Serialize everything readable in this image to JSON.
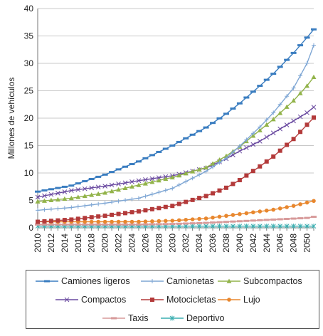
{
  "chart_data": {
    "type": "line",
    "title": "",
    "xlabel": "",
    "ylabel": "Millones de vehículos",
    "xlim": [
      2010,
      2051
    ],
    "ylim": [
      0,
      40
    ],
    "yticks": [
      "0",
      "5",
      "10",
      "15",
      "20",
      "25",
      "30",
      "35",
      "40"
    ],
    "xticks": [
      "2010",
      "2012",
      "2014",
      "2016",
      "2018",
      "2020",
      "2022",
      "2024",
      "2026",
      "2028",
      "2030",
      "2032",
      "2034",
      "2036",
      "2038",
      "2040",
      "2042",
      "2044",
      "2046",
      "2048",
      "2050"
    ],
    "grid": "horizontal",
    "legend_position": "bottom",
    "x_start": 2010,
    "x_end": 2051,
    "series": [
      {
        "name": "Camiones ligeros",
        "color": "#3a7dc0",
        "marker": "dash",
        "anchors": [
          [
            2010,
            6.6
          ],
          [
            2015,
            7.7
          ],
          [
            2020,
            9.7
          ],
          [
            2025,
            12.1
          ],
          [
            2030,
            15.0
          ],
          [
            2035,
            18.3
          ],
          [
            2038,
            20.8
          ],
          [
            2040,
            22.7
          ],
          [
            2043,
            25.9
          ],
          [
            2045,
            28.1
          ],
          [
            2048,
            31.9
          ],
          [
            2050,
            34.7
          ],
          [
            2051,
            36.2
          ]
        ]
      },
      {
        "name": "Camionetas",
        "color": "#7ea6d4",
        "marker": "plus",
        "anchors": [
          [
            2010,
            3.2
          ],
          [
            2015,
            3.7
          ],
          [
            2020,
            4.5
          ],
          [
            2025,
            5.4
          ],
          [
            2030,
            7.2
          ],
          [
            2035,
            10.3
          ],
          [
            2038,
            12.7
          ],
          [
            2040,
            14.9
          ],
          [
            2043,
            18.4
          ],
          [
            2045,
            21.0
          ],
          [
            2048,
            25.5
          ],
          [
            2050,
            30.0
          ],
          [
            2051,
            33.3
          ]
        ]
      },
      {
        "name": "Subcompactos",
        "color": "#92b34a",
        "marker": "triangle",
        "anchors": [
          [
            2010,
            4.8
          ],
          [
            2015,
            5.4
          ],
          [
            2020,
            6.4
          ],
          [
            2025,
            7.8
          ],
          [
            2030,
            9.2
          ],
          [
            2035,
            11.0
          ],
          [
            2038,
            13.1
          ],
          [
            2040,
            14.8
          ],
          [
            2043,
            17.8
          ],
          [
            2045,
            19.8
          ],
          [
            2048,
            23.2
          ],
          [
            2050,
            25.9
          ],
          [
            2051,
            27.5
          ]
        ]
      },
      {
        "name": "Compactos",
        "color": "#6a4aa0",
        "marker": "x",
        "anchors": [
          [
            2010,
            5.6
          ],
          [
            2015,
            6.8
          ],
          [
            2020,
            7.6
          ],
          [
            2025,
            8.6
          ],
          [
            2030,
            9.5
          ],
          [
            2035,
            10.9
          ],
          [
            2038,
            12.6
          ],
          [
            2040,
            14.0
          ],
          [
            2043,
            15.8
          ],
          [
            2045,
            17.3
          ],
          [
            2048,
            19.5
          ],
          [
            2050,
            21.0
          ],
          [
            2051,
            22.0
          ]
        ]
      },
      {
        "name": "Motocicletas",
        "color": "#b33a3a",
        "marker": "square",
        "anchors": [
          [
            2010,
            1.1
          ],
          [
            2015,
            1.5
          ],
          [
            2020,
            2.2
          ],
          [
            2025,
            3.0
          ],
          [
            2030,
            4.0
          ],
          [
            2035,
            5.8
          ],
          [
            2038,
            7.3
          ],
          [
            2040,
            8.7
          ],
          [
            2043,
            11.2
          ],
          [
            2045,
            13.0
          ],
          [
            2048,
            16.2
          ],
          [
            2050,
            18.8
          ],
          [
            2051,
            20.1
          ]
        ]
      },
      {
        "name": "Lujo",
        "color": "#e8872e",
        "marker": "circle",
        "anchors": [
          [
            2010,
            1.1
          ],
          [
            2015,
            1.1
          ],
          [
            2020,
            1.1
          ],
          [
            2025,
            1.1
          ],
          [
            2030,
            1.3
          ],
          [
            2035,
            1.7
          ],
          [
            2040,
            2.5
          ],
          [
            2045,
            3.3
          ],
          [
            2048,
            4.0
          ],
          [
            2050,
            4.6
          ],
          [
            2051,
            4.9
          ]
        ]
      },
      {
        "name": "Taxis",
        "color": "#d79a9a",
        "marker": "dash",
        "anchors": [
          [
            2010,
            0.6
          ],
          [
            2015,
            0.6
          ],
          [
            2020,
            0.6
          ],
          [
            2025,
            0.6
          ],
          [
            2030,
            0.7
          ],
          [
            2035,
            0.9
          ],
          [
            2040,
            1.2
          ],
          [
            2045,
            1.5
          ],
          [
            2050,
            1.8
          ],
          [
            2051,
            2.0
          ]
        ]
      },
      {
        "name": "Deportivo",
        "color": "#3aaeb0",
        "marker": "star",
        "anchors": [
          [
            2010,
            0.3
          ],
          [
            2020,
            0.3
          ],
          [
            2030,
            0.3
          ],
          [
            2040,
            0.3
          ],
          [
            2051,
            0.3
          ]
        ]
      }
    ]
  }
}
